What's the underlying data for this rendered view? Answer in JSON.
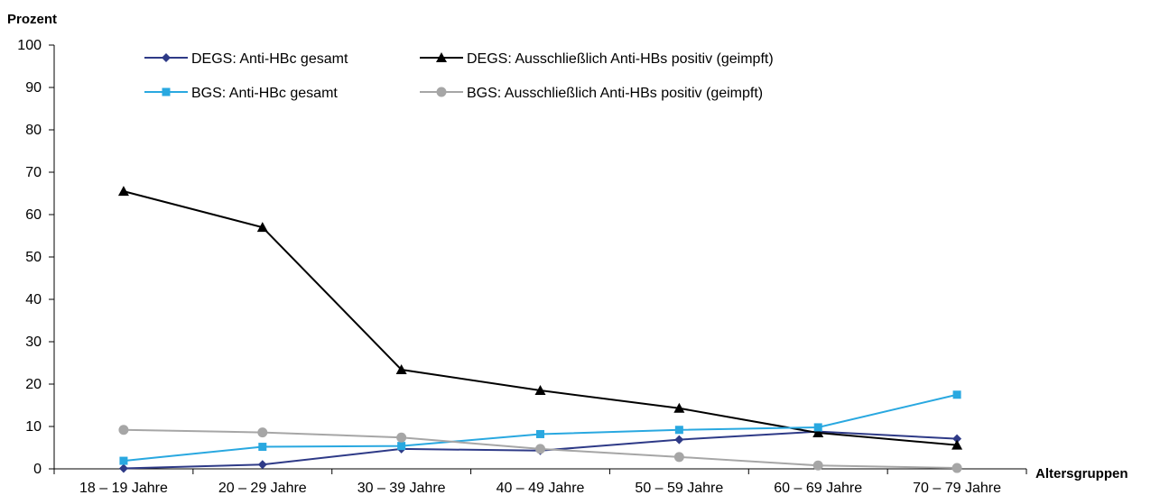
{
  "chart_data": {
    "type": "line",
    "ylabel": "Prozent",
    "xlabel": "Altersgruppen",
    "ylim": [
      0,
      100
    ],
    "yticks": [
      0,
      10,
      20,
      30,
      40,
      50,
      60,
      70,
      80,
      90,
      100
    ],
    "categories": [
      "18 – 19 Jahre",
      "20 – 29 Jahre",
      "30 – 39 Jahre",
      "40 – 49 Jahre",
      "50 – 59 Jahre",
      "60 – 69 Jahre",
      "70 – 79 Jahre"
    ],
    "grid": false,
    "legend_position": "top",
    "series": [
      {
        "key": "degs-anti-hbc",
        "name": "DEGS: Anti-HBc gesamt",
        "color": "#2e3a87",
        "marker": "diamond",
        "values": [
          0.1,
          1.0,
          4.7,
          4.3,
          6.9,
          8.8,
          7.1
        ]
      },
      {
        "key": "degs-anti-hbs",
        "name": "DEGS: Ausschließlich Anti-HBs positiv (geimpft)",
        "color": "#000000",
        "marker": "triangle",
        "values": [
          65.5,
          57.0,
          23.4,
          18.5,
          14.3,
          8.5,
          5.6
        ]
      },
      {
        "key": "bgs-anti-hbc",
        "name": "BGS: Anti-HBc gesamt",
        "color": "#29a8e0",
        "marker": "square",
        "values": [
          1.9,
          5.2,
          5.4,
          8.2,
          9.2,
          9.8,
          17.5
        ]
      },
      {
        "key": "bgs-anti-hbs",
        "name": "BGS: Ausschließlich Anti-HBs positiv (geimpft)",
        "color": "#a6a6a6",
        "marker": "circle",
        "values": [
          9.2,
          8.6,
          7.4,
          4.7,
          2.8,
          0.8,
          0.2
        ]
      }
    ]
  }
}
